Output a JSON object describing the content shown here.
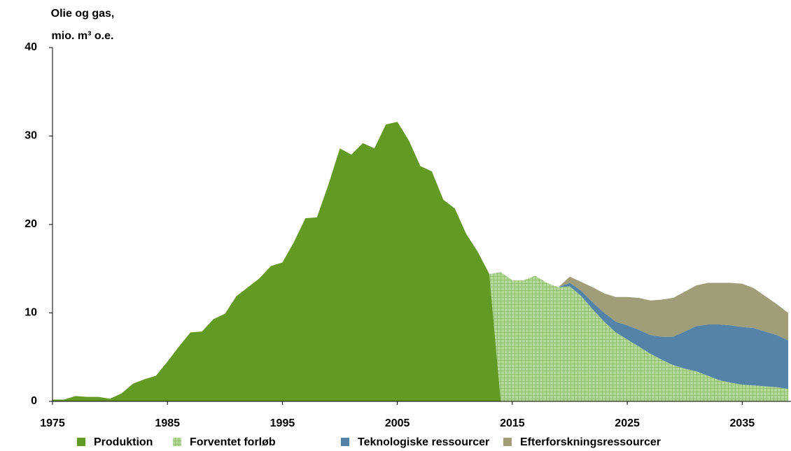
{
  "chart_data": {
    "type": "stacked-area",
    "ylabel": [
      "Olie og gas,",
      "mio. m³ o.e."
    ],
    "x": [
      1975,
      1976,
      1977,
      1978,
      1979,
      1980,
      1981,
      1982,
      1983,
      1984,
      1985,
      1986,
      1987,
      1988,
      1989,
      1990,
      1991,
      1992,
      1993,
      1994,
      1995,
      1996,
      1997,
      1998,
      1999,
      2000,
      2001,
      2002,
      2003,
      2004,
      2005,
      2006,
      2007,
      2008,
      2009,
      2010,
      2011,
      2012,
      2013,
      2014,
      2015,
      2016,
      2017,
      2018,
      2019,
      2020,
      2021,
      2022,
      2023,
      2024,
      2025,
      2026,
      2027,
      2028,
      2029,
      2030,
      2031,
      2032,
      2033,
      2034,
      2035,
      2036,
      2037,
      2038,
      2039
    ],
    "series": [
      {
        "name": "Produktion",
        "color": "#629a23",
        "pattern": false,
        "values": [
          0.2,
          0.2,
          0.6,
          0.5,
          0.5,
          0.3,
          0.9,
          2.0,
          2.5,
          2.9,
          4.5,
          6.2,
          7.8,
          7.9,
          9.3,
          9.9,
          11.9,
          12.9,
          13.9,
          15.3,
          15.7,
          18.0,
          20.7,
          20.8,
          24.5,
          28.6,
          27.9,
          29.2,
          28.6,
          31.3,
          31.6,
          29.5,
          26.6,
          26.0,
          22.8,
          21.8,
          18.9,
          16.9,
          14.4,
          0,
          null,
          null,
          null,
          null,
          null,
          null,
          null,
          null,
          null,
          null,
          null,
          null,
          null,
          null,
          null,
          null,
          null,
          null,
          null,
          null,
          null,
          null,
          null,
          null,
          null
        ]
      },
      {
        "name": "Forventet forløb",
        "color": "#b5d99a",
        "pattern": true,
        "values": [
          null,
          null,
          null,
          null,
          null,
          null,
          null,
          null,
          null,
          null,
          null,
          null,
          null,
          null,
          null,
          null,
          null,
          null,
          null,
          null,
          null,
          null,
          null,
          null,
          null,
          null,
          null,
          null,
          null,
          null,
          null,
          null,
          null,
          null,
          null,
          null,
          null,
          null,
          0,
          14.6,
          13.7,
          13.7,
          14.2,
          13.4,
          12.9,
          13.0,
          11.9,
          10.4,
          9.0,
          7.8,
          7.0,
          6.2,
          5.4,
          4.7,
          4.1,
          3.7,
          3.4,
          2.9,
          2.4,
          2.1,
          1.9,
          1.8,
          1.7,
          1.6,
          1.4
        ]
      },
      {
        "name": "Teknologiske ressourcer",
        "color": "#5583a8",
        "pattern": false,
        "values": [
          null,
          null,
          null,
          null,
          null,
          null,
          null,
          null,
          null,
          null,
          null,
          null,
          null,
          null,
          null,
          null,
          null,
          null,
          null,
          null,
          null,
          null,
          null,
          null,
          null,
          null,
          null,
          null,
          null,
          null,
          null,
          null,
          null,
          null,
          null,
          null,
          null,
          null,
          null,
          null,
          null,
          null,
          null,
          null,
          0,
          0.4,
          0.6,
          0.8,
          1.0,
          1.2,
          1.6,
          1.9,
          2.1,
          2.6,
          3.2,
          4.2,
          5.1,
          5.8,
          6.3,
          6.5,
          6.5,
          6.5,
          6.2,
          5.9,
          5.5
        ]
      },
      {
        "name": "Efterforskningsressourcer",
        "color": "#a09e78",
        "pattern": false,
        "values": [
          null,
          null,
          null,
          null,
          null,
          null,
          null,
          null,
          null,
          null,
          null,
          null,
          null,
          null,
          null,
          null,
          null,
          null,
          null,
          null,
          null,
          null,
          null,
          null,
          null,
          null,
          null,
          null,
          null,
          null,
          null,
          null,
          null,
          null,
          null,
          null,
          null,
          null,
          null,
          null,
          null,
          null,
          null,
          null,
          0,
          0.7,
          1.0,
          1.7,
          2.2,
          2.8,
          3.2,
          3.6,
          3.9,
          4.2,
          4.4,
          4.5,
          4.6,
          4.7,
          4.7,
          4.8,
          4.9,
          4.5,
          4.0,
          3.5,
          3.1
        ]
      }
    ],
    "xlim": [
      1975,
      2039
    ],
    "xticks": [
      1975,
      1985,
      1995,
      2005,
      2015,
      2025,
      2035
    ],
    "ylim": [
      0,
      40
    ],
    "yticks": [
      0,
      10,
      20,
      30,
      40
    ],
    "grid": false,
    "legend": "bottom"
  }
}
